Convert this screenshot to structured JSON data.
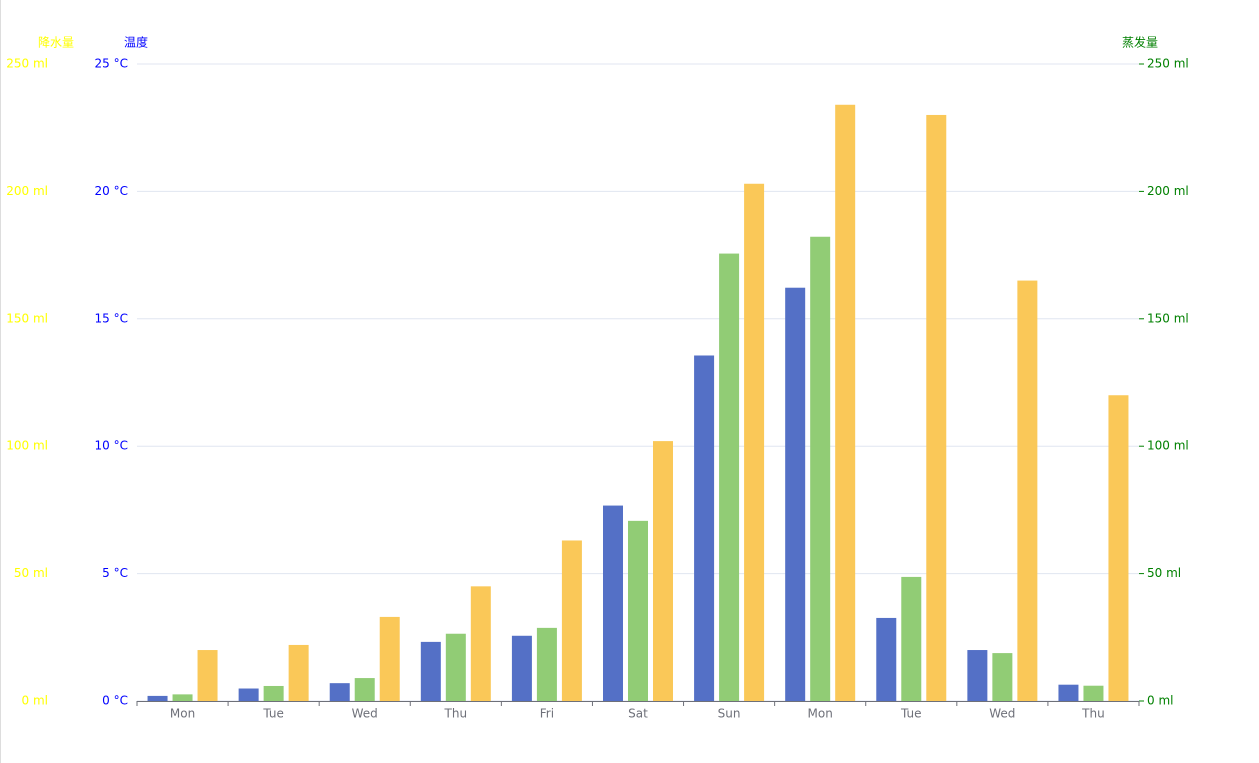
{
  "chart_data": {
    "type": "bar",
    "categories": [
      "Mon",
      "Tue",
      "Wed",
      "Thu",
      "Fri",
      "Sat",
      "Sun",
      "Mon",
      "Tue",
      "Wed",
      "Thu"
    ],
    "y_axes": [
      {
        "name": "降水量",
        "color": "#ffff00",
        "position": "left-outer",
        "lim": [
          0,
          250
        ],
        "ticks": [
          {
            "value": 0,
            "label": "0 ml"
          },
          {
            "value": 50,
            "label": "50 ml"
          },
          {
            "value": 100,
            "label": "100 ml"
          },
          {
            "value": 150,
            "label": "150 ml"
          },
          {
            "value": 200,
            "label": "200 ml"
          },
          {
            "value": 250,
            "label": "250 ml"
          }
        ]
      },
      {
        "name": "温度",
        "color": "#0000ff",
        "position": "left",
        "lim": [
          0,
          25
        ],
        "ticks": [
          {
            "value": 0,
            "label": "0 °C"
          },
          {
            "value": 5,
            "label": "5 °C"
          },
          {
            "value": 10,
            "label": "10 °C"
          },
          {
            "value": 15,
            "label": "15 °C"
          },
          {
            "value": 20,
            "label": "20 °C"
          },
          {
            "value": 25,
            "label": "25 °C"
          }
        ]
      },
      {
        "name": "蒸发量",
        "color": "#008000",
        "position": "right",
        "lim": [
          0,
          250
        ],
        "ticks": [
          {
            "value": 0,
            "label": "0 ml"
          },
          {
            "value": 50,
            "label": "50 ml"
          },
          {
            "value": 100,
            "label": "100 ml"
          },
          {
            "value": 150,
            "label": "150 ml"
          },
          {
            "value": 200,
            "label": "200 ml"
          },
          {
            "value": 250,
            "label": "250 ml"
          }
        ]
      }
    ],
    "grid": true,
    "series": [
      {
        "color": "#5470c6",
        "axis": 0,
        "values": [
          2.0,
          4.9,
          7.0,
          23.2,
          25.6,
          76.7,
          135.6,
          162.2,
          32.6,
          20.0,
          6.4
        ]
      },
      {
        "color": "#91cc75",
        "axis": 2,
        "values": [
          2.6,
          5.9,
          9.0,
          26.4,
          28.7,
          70.7,
          175.6,
          182.2,
          48.7,
          18.8,
          6.0
        ]
      },
      {
        "color": "#fac858",
        "axis": 1,
        "values": [
          2.0,
          2.2,
          3.3,
          4.5,
          6.3,
          10.2,
          20.3,
          23.4,
          23.0,
          16.5,
          12.0
        ]
      }
    ]
  }
}
